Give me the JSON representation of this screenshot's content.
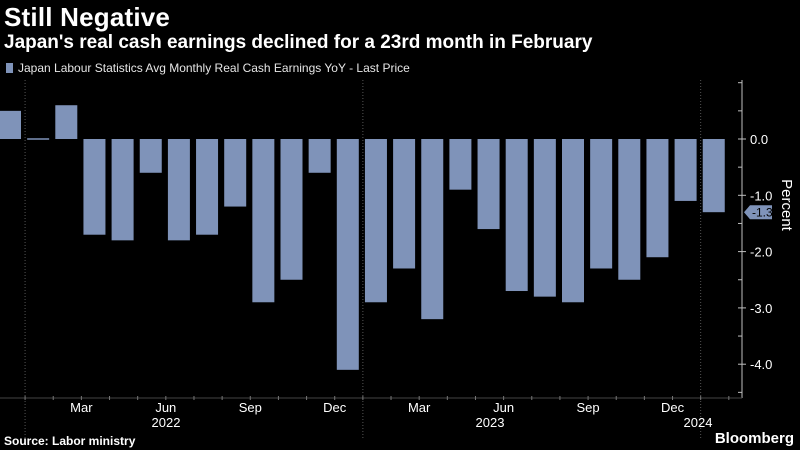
{
  "title": "Still Negative",
  "subtitle": "Japan's real cash earnings declined for a 23rd month in February",
  "source": "Source: Labor ministry",
  "brand": "Bloomberg",
  "colors": {
    "bar": "#7f93b9",
    "axis": "#bfbfbf",
    "background": "#000000"
  },
  "chart_data": {
    "type": "bar",
    "series": [
      {
        "name": "Japan Labour Statistics Avg Monthly Real Cash Earnings YoY - Last Price",
        "values": [
          0.5,
          0.0,
          0.6,
          -1.7,
          -1.8,
          -0.6,
          -1.8,
          -1.7,
          -1.2,
          -2.9,
          -2.5,
          -0.6,
          -4.1,
          -2.9,
          -2.3,
          -3.2,
          -0.9,
          -1.6,
          -2.7,
          -2.8,
          -2.9,
          -2.3,
          -2.5,
          -2.1,
          -1.1,
          -1.3
        ]
      }
    ],
    "categories": [
      "Dec 2021",
      "Jan 2022",
      "Feb 2022",
      "Mar 2022",
      "Apr 2022",
      "May 2022",
      "Jun 2022",
      "Jul 2022",
      "Aug 2022",
      "Sep 2022",
      "Oct 2022",
      "Nov 2022",
      "Dec 2022",
      "Jan 2023",
      "Feb 2023",
      "Mar 2023",
      "Apr 2023",
      "May 2023",
      "Jun 2023",
      "Jul 2023",
      "Aug 2023",
      "Sep 2023",
      "Oct 2023",
      "Nov 2023",
      "Dec 2023",
      "Jan 2024"
    ],
    "x_tick_labels": [
      "Mar",
      "Jun",
      "Sep",
      "Dec",
      "Mar",
      "Jun",
      "Sep",
      "Dec"
    ],
    "x_year_labels": [
      "2022",
      "2023",
      "2024"
    ],
    "y_tick_labels": [
      "0.0",
      "-1.0",
      "-2.0",
      "-3.0",
      "-4.0"
    ],
    "ylim": [
      -4.5,
      1.0
    ],
    "ylabel": "Percent",
    "last_price_label": "-1.3",
    "legend_position": "top-left"
  }
}
